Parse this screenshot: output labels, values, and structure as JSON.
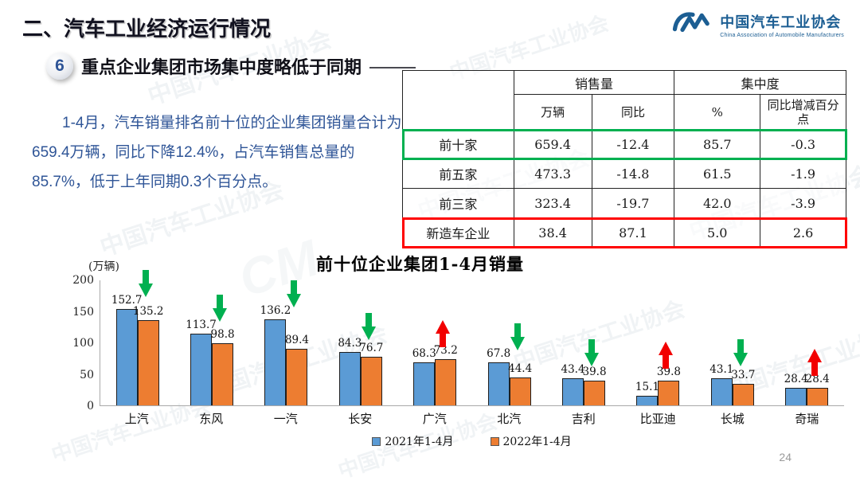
{
  "page": {
    "section_title": "二、汽车工业经济运行情况",
    "page_number": "24"
  },
  "logo": {
    "cn": "中国汽车工业协会",
    "en": "China Association of Automobile Manufacturers"
  },
  "heading": {
    "badge": "6",
    "text": "重点企业集团市场集中度略低于同期"
  },
  "paragraph": "1-4月，汽车销量排名前十位的企业集团销量合计为659.4万辆，同比下降12.4%，占汽车销售总量的85.7%，低于上年同期0.3个百分点。",
  "table": {
    "col_groups": [
      "销售量",
      "集中度"
    ],
    "sub_headers": [
      "万辆",
      "同比",
      "%",
      "同比增减百分点"
    ],
    "rows": [
      {
        "label": "前十家",
        "values": [
          "659.4",
          "-12.4",
          "85.7",
          "-0.3"
        ],
        "highlight": "green"
      },
      {
        "label": "前五家",
        "values": [
          "473.3",
          "-14.8",
          "61.5",
          "-1.9"
        ],
        "highlight": null
      },
      {
        "label": "前三家",
        "values": [
          "323.4",
          "-19.7",
          "42.0",
          "-3.9"
        ],
        "highlight": null
      },
      {
        "label": "新造车企业",
        "values": [
          "38.4",
          "87.1",
          "5.0",
          "2.6"
        ],
        "highlight": "red"
      }
    ]
  },
  "chart_data": {
    "type": "bar",
    "title": "前十位企业集团1-4月销量",
    "unit_label": "(万辆)",
    "categories": [
      "上汽",
      "东风",
      "一汽",
      "长安",
      "广汽",
      "北汽",
      "吉利",
      "比亚迪",
      "长城",
      "奇瑞"
    ],
    "series": [
      {
        "name": "2021年1-4月",
        "color": "#5B9BD5",
        "values": [
          152.7,
          113.7,
          136.2,
          84.3,
          68.3,
          67.8,
          43.4,
          15.1,
          43.1,
          28.4
        ]
      },
      {
        "name": "2022年1-4月",
        "color": "#ED7D31",
        "values": [
          135.2,
          98.8,
          89.4,
          76.7,
          73.2,
          44.4,
          39.8,
          39.8,
          33.7,
          28.4
        ]
      }
    ],
    "trend_arrows": [
      "down",
      "down",
      "down",
      "down",
      "up",
      "down",
      "down",
      "up",
      "down",
      "up"
    ],
    "arrow_colors": {
      "up": "#F20000",
      "down": "#00B050"
    },
    "ylim": [
      0,
      200
    ],
    "yticks": [
      0,
      50,
      100,
      150,
      200
    ],
    "ylabel": "(万辆)",
    "legend_position": "bottom",
    "grid": false
  }
}
